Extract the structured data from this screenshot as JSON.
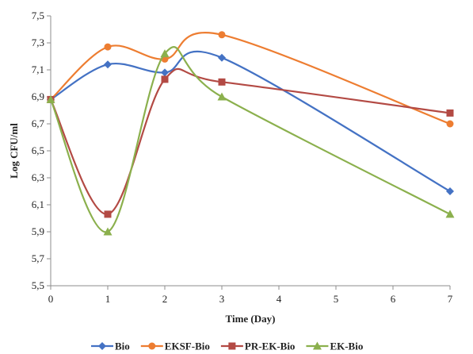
{
  "chart_data": {
    "type": "line",
    "xlabel": "Time (Day)",
    "ylabel": "Log CFU/ml",
    "xlim": [
      0,
      7
    ],
    "ylim": [
      5.5,
      7.5
    ],
    "x_ticks": [
      0,
      1,
      2,
      3,
      4,
      5,
      6,
      7
    ],
    "y_ticks": [
      "5,5",
      "5,7",
      "5,9",
      "6,1",
      "6,3",
      "6,5",
      "6,7",
      "6,9",
      "7,1",
      "7,3",
      "7,5"
    ],
    "y_tick_values": [
      5.5,
      5.7,
      5.9,
      6.1,
      6.3,
      6.5,
      6.7,
      6.9,
      7.1,
      7.3,
      7.5
    ],
    "x": [
      0,
      1,
      2,
      3,
      7
    ],
    "smoothed": true,
    "grid": false,
    "legend_position": "bottom",
    "series": [
      {
        "name": "Bio",
        "values": [
          6.88,
          7.14,
          7.08,
          7.19,
          6.2
        ],
        "color": "#4472C4",
        "marker": "diamond"
      },
      {
        "name": "EKSF-Bio",
        "values": [
          6.88,
          7.27,
          7.18,
          7.36,
          6.7
        ],
        "color": "#ED7D31",
        "marker": "circle"
      },
      {
        "name": "PR-EK-Bio",
        "values": [
          6.88,
          6.03,
          7.03,
          7.01,
          6.78
        ],
        "color": "#B34A44",
        "marker": "square"
      },
      {
        "name": "EK-Bio",
        "values": [
          6.88,
          5.9,
          7.22,
          6.9,
          6.03
        ],
        "color": "#8BB04D",
        "marker": "triangle"
      }
    ]
  }
}
